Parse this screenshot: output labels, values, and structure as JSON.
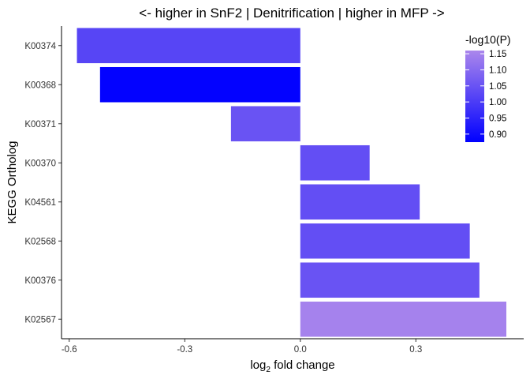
{
  "chart_data": {
    "type": "bar",
    "orientation": "horizontal",
    "title": "<- higher in SnF2 | Denitrification | higher in MFP ->",
    "xlabel_base": "log",
    "xlabel_sub": "2",
    "xlabel_rest": " fold change",
    "ylabel": "KEGG Ortholog",
    "xlim": [
      -0.62,
      0.58
    ],
    "xticks": [
      -0.6,
      -0.3,
      0.0,
      0.3
    ],
    "xtick_labels": [
      "-0.6",
      "-0.3",
      "0.0",
      "0.3"
    ],
    "categories": [
      "K00374",
      "K00368",
      "K00371",
      "K00370",
      "K04561",
      "K02568",
      "K00376",
      "K02567"
    ],
    "values": [
      -0.58,
      -0.52,
      -0.18,
      0.18,
      0.31,
      0.44,
      0.465,
      0.535
    ],
    "neglog10p": [
      1.02,
      0.88,
      1.05,
      1.04,
      1.04,
      1.04,
      1.05,
      1.15
    ],
    "grid": false,
    "legend": {
      "title": "-log10(P)",
      "placement": "top-right",
      "range": [
        0.875,
        1.16
      ],
      "ticks": [
        1.15,
        1.1,
        1.05,
        1.0,
        0.95,
        0.9
      ],
      "tick_labels": [
        "1.15",
        "1.10",
        "1.05",
        "1.00",
        "0.95",
        "0.90"
      ],
      "color_low": "#0000FF",
      "color_high": "#AB87EC"
    }
  }
}
